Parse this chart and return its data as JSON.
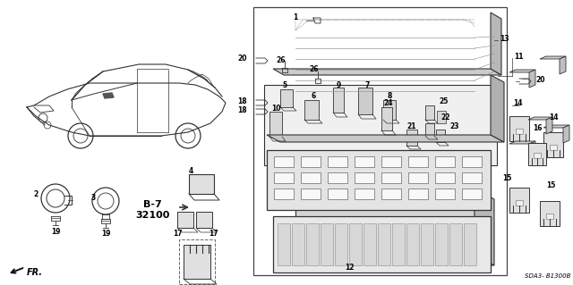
{
  "bg_color": "#ffffff",
  "fig_width": 6.4,
  "fig_height": 3.19,
  "dpi": 100,
  "text_color": "#000000",
  "diagram_code": "SDA3- B1300B",
  "ref_label": "B-7\n32100",
  "fr_label": "FR.",
  "line_color": "#333333",
  "gray_fill": "#c8c8c8",
  "light_gray": "#e0e0e0",
  "mid_gray": "#aaaaaa"
}
